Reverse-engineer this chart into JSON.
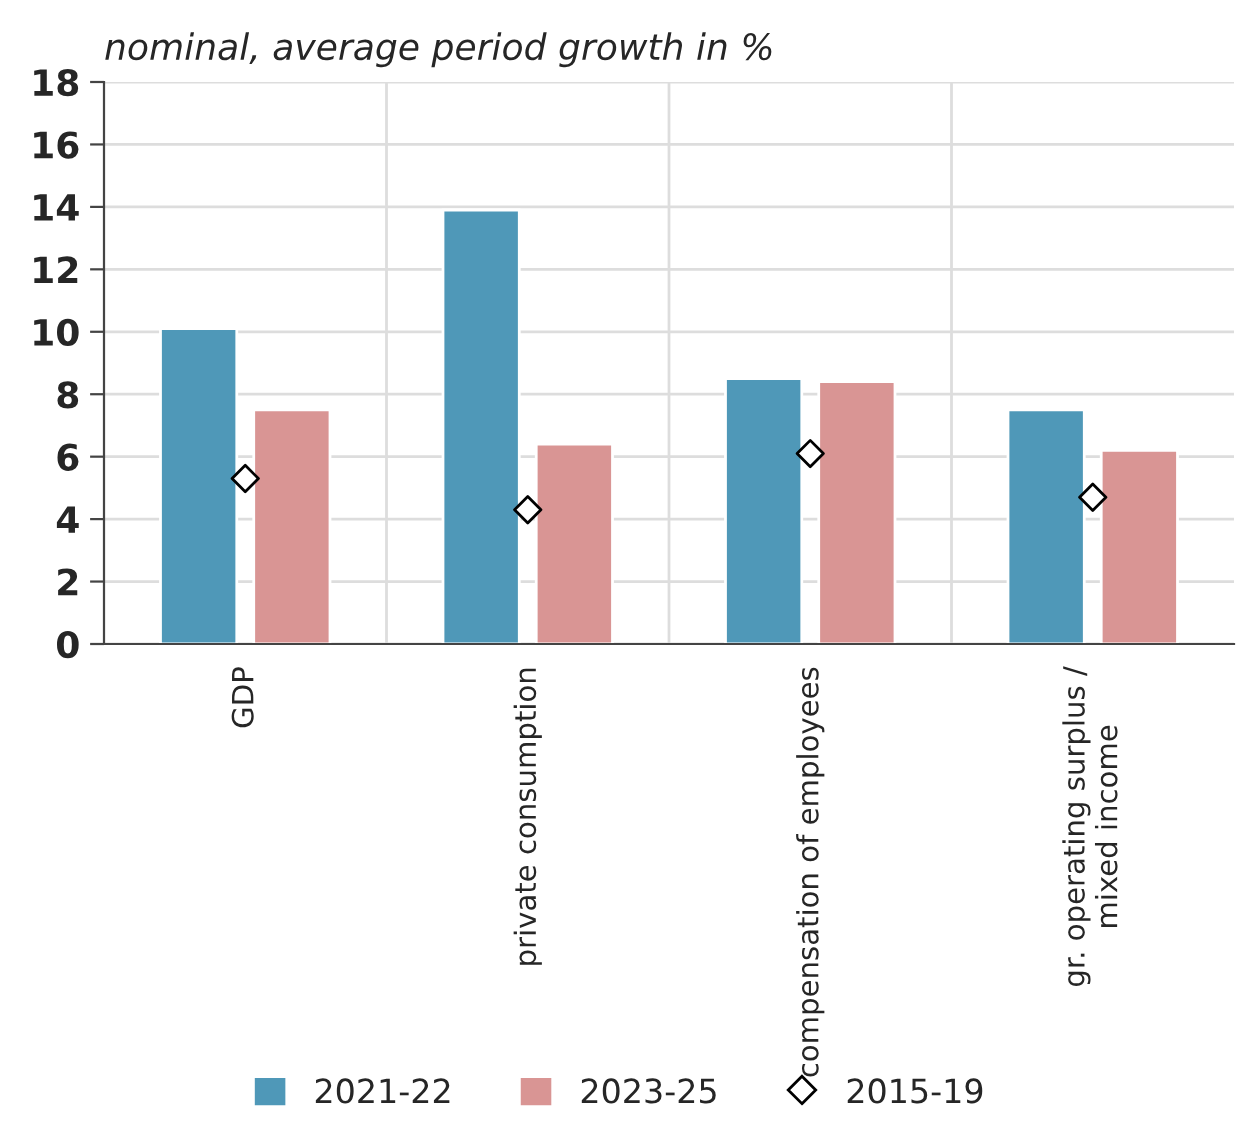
{
  "chart_data": {
    "type": "bar",
    "title": "nominal, average period growth in %",
    "categories": [
      "GDP",
      "private consumption",
      "compensation of employees",
      "gr. operating surplus /\nmixed income"
    ],
    "series": [
      {
        "name": "2021-22",
        "color": "#4f98b8",
        "values": [
          10.1,
          13.9,
          8.5,
          7.5
        ]
      },
      {
        "name": "2023-25",
        "color": "#d99594",
        "values": [
          7.5,
          6.4,
          8.4,
          6.2
        ]
      },
      {
        "name": "2015-19",
        "type": "scatter",
        "marker": "diamond",
        "color": "#ffffff",
        "x": [
          "GDP",
          "private consumption",
          "compensation of employees",
          "gr. operating surplus /\nmixed income"
        ],
        "values": [
          5.3,
          4.3,
          6.1,
          4.7
        ]
      }
    ],
    "ylim": [
      0,
      18
    ],
    "yticks": [
      0,
      2,
      4,
      6,
      8,
      10,
      12,
      14,
      16,
      18
    ],
    "grid": true,
    "legend": "bottom"
  }
}
